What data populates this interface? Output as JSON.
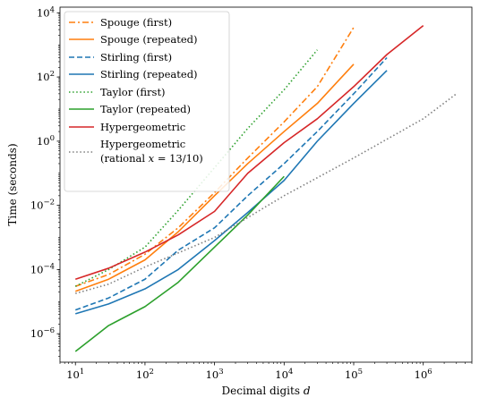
{
  "chart_data": {
    "type": "line",
    "xlabel": "Decimal digits d",
    "ylabel": "Time (seconds)",
    "xscale": "log",
    "yscale": "log",
    "xlim": [
      6,
      5000000
    ],
    "ylim": [
      1.3e-07,
      15000
    ],
    "xticks": [
      10,
      100,
      1000,
      10000,
      100000,
      1000000
    ],
    "xtick_labels": [
      "10^1",
      "10^2",
      "10^3",
      "10^4",
      "10^5",
      "10^6"
    ],
    "yticks": [
      1e-06,
      0.0001,
      0.01,
      1,
      100,
      10000
    ],
    "ytick_labels": [
      "10^-6",
      "10^-4",
      "10^-2",
      "10^0",
      "10^2",
      "10^4"
    ],
    "grid": false,
    "legend_position": "top-left",
    "series": [
      {
        "name": "Spouge (first)",
        "color": "#ff7f0e",
        "dash": "dashdot",
        "x": [
          10,
          30,
          100,
          300,
          1000,
          3000,
          10000,
          30000,
          100000
        ],
        "y": [
          3e-05,
          7e-05,
          0.0003,
          0.002,
          0.025,
          0.3,
          4,
          50,
          3500
        ]
      },
      {
        "name": "Spouge (repeated)",
        "color": "#ff7f0e",
        "dash": "solid",
        "x": [
          10,
          30,
          100,
          300,
          1000,
          3000,
          10000,
          30000,
          100000
        ],
        "y": [
          2.1e-05,
          5e-05,
          0.0002,
          0.0015,
          0.02,
          0.2,
          2,
          15,
          250
        ]
      },
      {
        "name": "Stirling (first)",
        "color": "#1f77b4",
        "dash": "dashed",
        "x": [
          10,
          30,
          100,
          300,
          1000,
          3000,
          10000,
          30000,
          100000,
          300000
        ],
        "y": [
          5.5e-06,
          1.3e-05,
          5e-05,
          0.0004,
          0.002,
          0.02,
          0.2,
          2,
          30,
          400
        ]
      },
      {
        "name": "Stirling (repeated)",
        "color": "#1f77b4",
        "dash": "solid",
        "x": [
          10,
          30,
          100,
          300,
          1000,
          3000,
          10000,
          30000,
          100000,
          300000
        ],
        "y": [
          4.2e-06,
          8.5e-06,
          2.5e-05,
          0.0001,
          0.0008,
          0.006,
          0.06,
          1,
          15,
          160
        ]
      },
      {
        "name": "Taylor (first)",
        "color": "#2ca02c",
        "dash": "dotted",
        "x": [
          10,
          30,
          100,
          300,
          1000,
          3000,
          10000,
          30000
        ],
        "y": [
          3e-05,
          0.0001,
          0.0005,
          0.007,
          0.15,
          2.5,
          40,
          700
        ]
      },
      {
        "name": "Taylor (repeated)",
        "color": "#2ca02c",
        "dash": "solid",
        "x": [
          10,
          30,
          100,
          300,
          1000,
          3000,
          10000
        ],
        "y": [
          2.8e-07,
          1.8e-06,
          7e-06,
          4e-05,
          0.0005,
          0.005,
          0.08
        ]
      },
      {
        "name": "Hypergeometric",
        "color": "#d62728",
        "dash": "solid",
        "x": [
          10,
          30,
          100,
          300,
          1000,
          3000,
          10000,
          30000,
          100000,
          300000,
          1000000
        ],
        "y": [
          5e-05,
          0.00011,
          0.00035,
          0.0012,
          0.0065,
          0.1,
          0.9,
          5,
          50,
          500,
          4000
        ]
      },
      {
        "name": "Hypergeometric (rational x = 13/10)",
        "color": "#7f7f7f",
        "dash": "dotted",
        "x": [
          10,
          30,
          100,
          1000,
          10000,
          100000,
          1000000,
          3000000
        ],
        "y": [
          1.8e-05,
          3.5e-05,
          0.00012,
          0.001,
          0.02,
          0.3,
          5,
          30
        ]
      }
    ]
  }
}
